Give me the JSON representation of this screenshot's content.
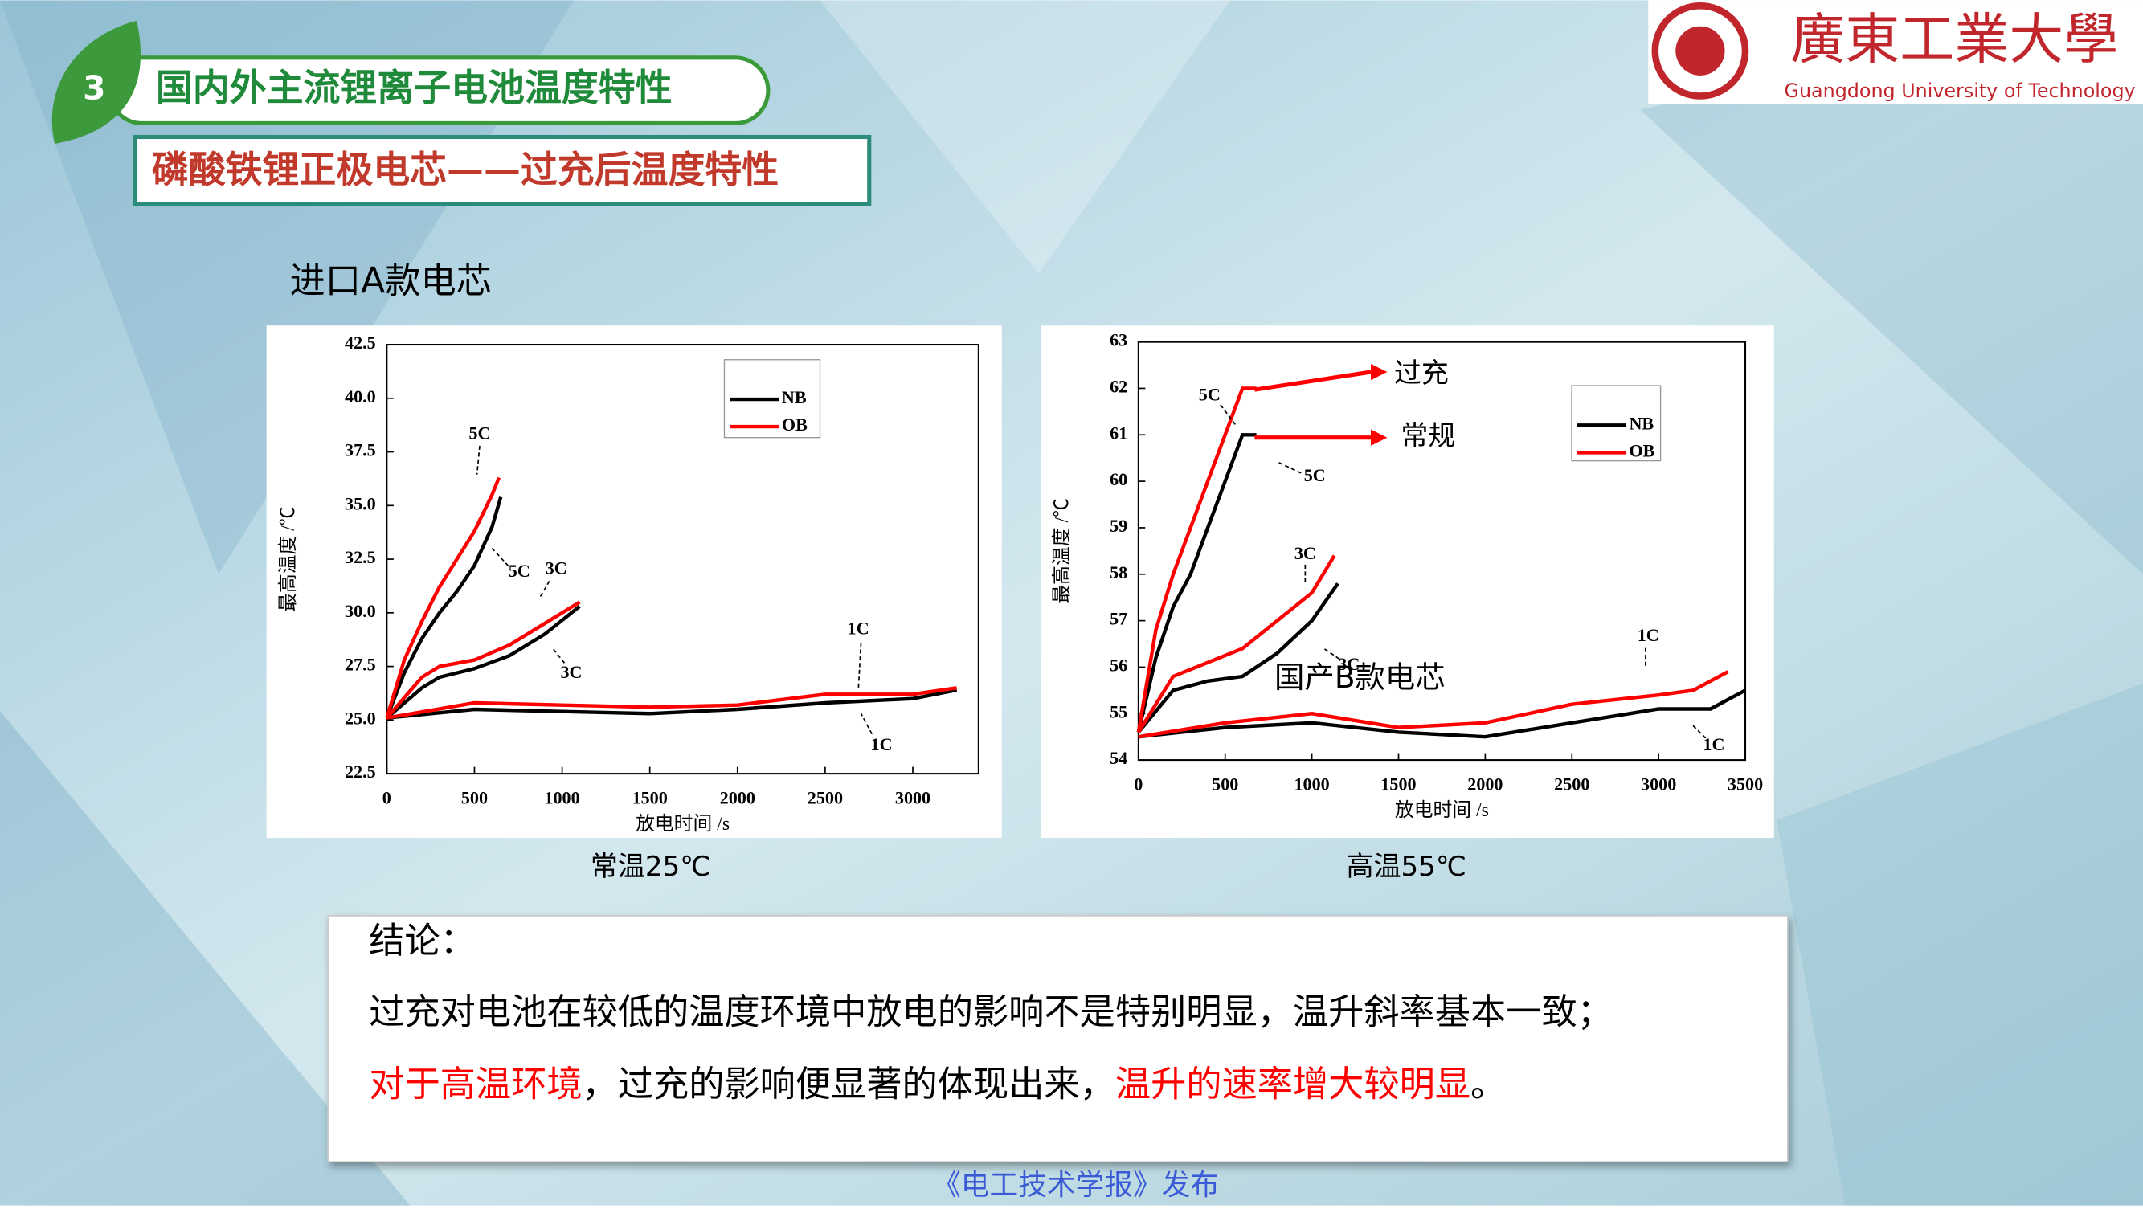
{
  "header": {
    "number": "3",
    "title": "国内外主流锂离子电池温度特性",
    "subtitle": "磷酸铁锂正极电芯——过充后温度特性"
  },
  "logo": {
    "name": "廣東工業大學",
    "english": "Guangdong University of Technology"
  },
  "section_label": "进口A款电芯",
  "chart_data": [
    {
      "type": "line",
      "x_label": "放电时间 /s",
      "y_label": "最高温度 /℃",
      "caption": "常温25℃",
      "xlim": [
        0,
        3375
      ],
      "ylim": [
        22.5,
        42.5
      ],
      "xticks": [
        0,
        500,
        1000,
        1500,
        2000,
        2500,
        3000
      ],
      "yticks": [
        22.5,
        {
          "value": 25,
          "label": "25.0"
        },
        27.5,
        {
          "value": 30,
          "label": "30.0"
        },
        32.5,
        {
          "value": 35,
          "label": "35.0"
        },
        37.5,
        {
          "value": 40,
          "label": "40.0"
        },
        42.5
      ],
      "series": [
        {
          "name": "NB",
          "color": "#000000",
          "curves": [
            {
              "x": [
                0,
                100,
                200,
                300,
                400,
                500,
                600,
                650
              ],
              "values": [
                25.1,
                27.2,
                28.8,
                30,
                31,
                32.2,
                34,
                35.4
              ]
            },
            {
              "x": [
                0,
                200,
                300,
                500,
                700,
                900,
                1100
              ],
              "values": [
                25.1,
                26.5,
                27,
                27.4,
                28,
                29,
                30.3
              ]
            },
            {
              "x": [
                0,
                500,
                1000,
                1500,
                2000,
                2500,
                3000,
                3250
              ],
              "values": [
                25.1,
                25.5,
                25.4,
                25.3,
                25.5,
                25.8,
                26,
                26.4
              ]
            }
          ]
        },
        {
          "name": "OB",
          "color": "#ff0000",
          "curves": [
            {
              "x": [
                0,
                100,
                200,
                300,
                400,
                500,
                600,
                640
              ],
              "values": [
                25.1,
                27.8,
                29.6,
                31.2,
                32.5,
                33.8,
                35.5,
                36.3
              ]
            },
            {
              "x": [
                0,
                200,
                300,
                500,
                700,
                900,
                1100
              ],
              "values": [
                25.1,
                27,
                27.5,
                27.8,
                28.5,
                29.5,
                30.5
              ]
            },
            {
              "x": [
                0,
                500,
                1000,
                1500,
                2000,
                2500,
                3000,
                3250
              ],
              "values": [
                25.1,
                25.8,
                25.7,
                25.6,
                25.7,
                26.2,
                26.2,
                26.5
              ]
            }
          ]
        }
      ],
      "annotations": [
        "5C",
        "5C",
        "3C",
        "3C",
        "1C",
        "1C"
      ]
    },
    {
      "type": "line",
      "x_label": "放电时间 /s",
      "y_label": "最高温度 /℃",
      "caption": "高温55℃",
      "xlim": [
        0,
        3500
      ],
      "ylim": [
        54,
        63
      ],
      "xticks": [
        0,
        500,
        1000,
        1500,
        2000,
        2500,
        3000,
        3500
      ],
      "yticks": [
        54,
        55,
        56,
        57,
        58,
        59,
        60,
        61,
        62,
        63
      ],
      "series": [
        {
          "name": "NB",
          "color": "#000000",
          "curves": [
            {
              "x": [
                0,
                100,
                200,
                300,
                400,
                500,
                600,
                680
              ],
              "values": [
                54.6,
                56.2,
                57.3,
                58,
                59,
                60,
                61,
                61
              ]
            },
            {
              "x": [
                0,
                200,
                400,
                600,
                800,
                1000,
                1150
              ],
              "values": [
                54.6,
                55.5,
                55.7,
                55.8,
                56.3,
                57,
                57.8
              ]
            },
            {
              "x": [
                0,
                500,
                1000,
                1500,
                2000,
                2500,
                3000,
                3300,
                3500
              ],
              "values": [
                54.5,
                54.7,
                54.8,
                54.6,
                54.5,
                54.8,
                55.1,
                55.1,
                55.5
              ]
            }
          ]
        },
        {
          "name": "OB",
          "color": "#ff0000",
          "curves": [
            {
              "x": [
                0,
                100,
                200,
                300,
                400,
                500,
                600,
                680
              ],
              "values": [
                54.6,
                56.8,
                58,
                59,
                60,
                61,
                62,
                62
              ]
            },
            {
              "x": [
                0,
                200,
                400,
                600,
                800,
                1000,
                1130
              ],
              "values": [
                54.6,
                55.8,
                56.1,
                56.4,
                57,
                57.6,
                58.4
              ]
            },
            {
              "x": [
                0,
                500,
                1000,
                1500,
                2000,
                2500,
                3000,
                3200,
                3400
              ],
              "values": [
                54.5,
                54.8,
                55,
                54.7,
                54.8,
                55.2,
                55.4,
                55.5,
                55.9
              ]
            }
          ]
        }
      ],
      "annotations": [
        "5C",
        "5C",
        "3C",
        "3C",
        "1C",
        "1C",
        "过充",
        "常规",
        "国产B款电芯"
      ]
    }
  ],
  "conclusion": {
    "title": "结论：",
    "line1": "过充对电池在较低的温度环境中放电的影响不是特别明显，温升斜率基本一致；",
    "line2": [
      "对于高温环境",
      "，过充的影响便显著的体现出来，",
      "温升的速率增大较明显",
      "。"
    ]
  },
  "footer": "《电工技术学报》发布"
}
